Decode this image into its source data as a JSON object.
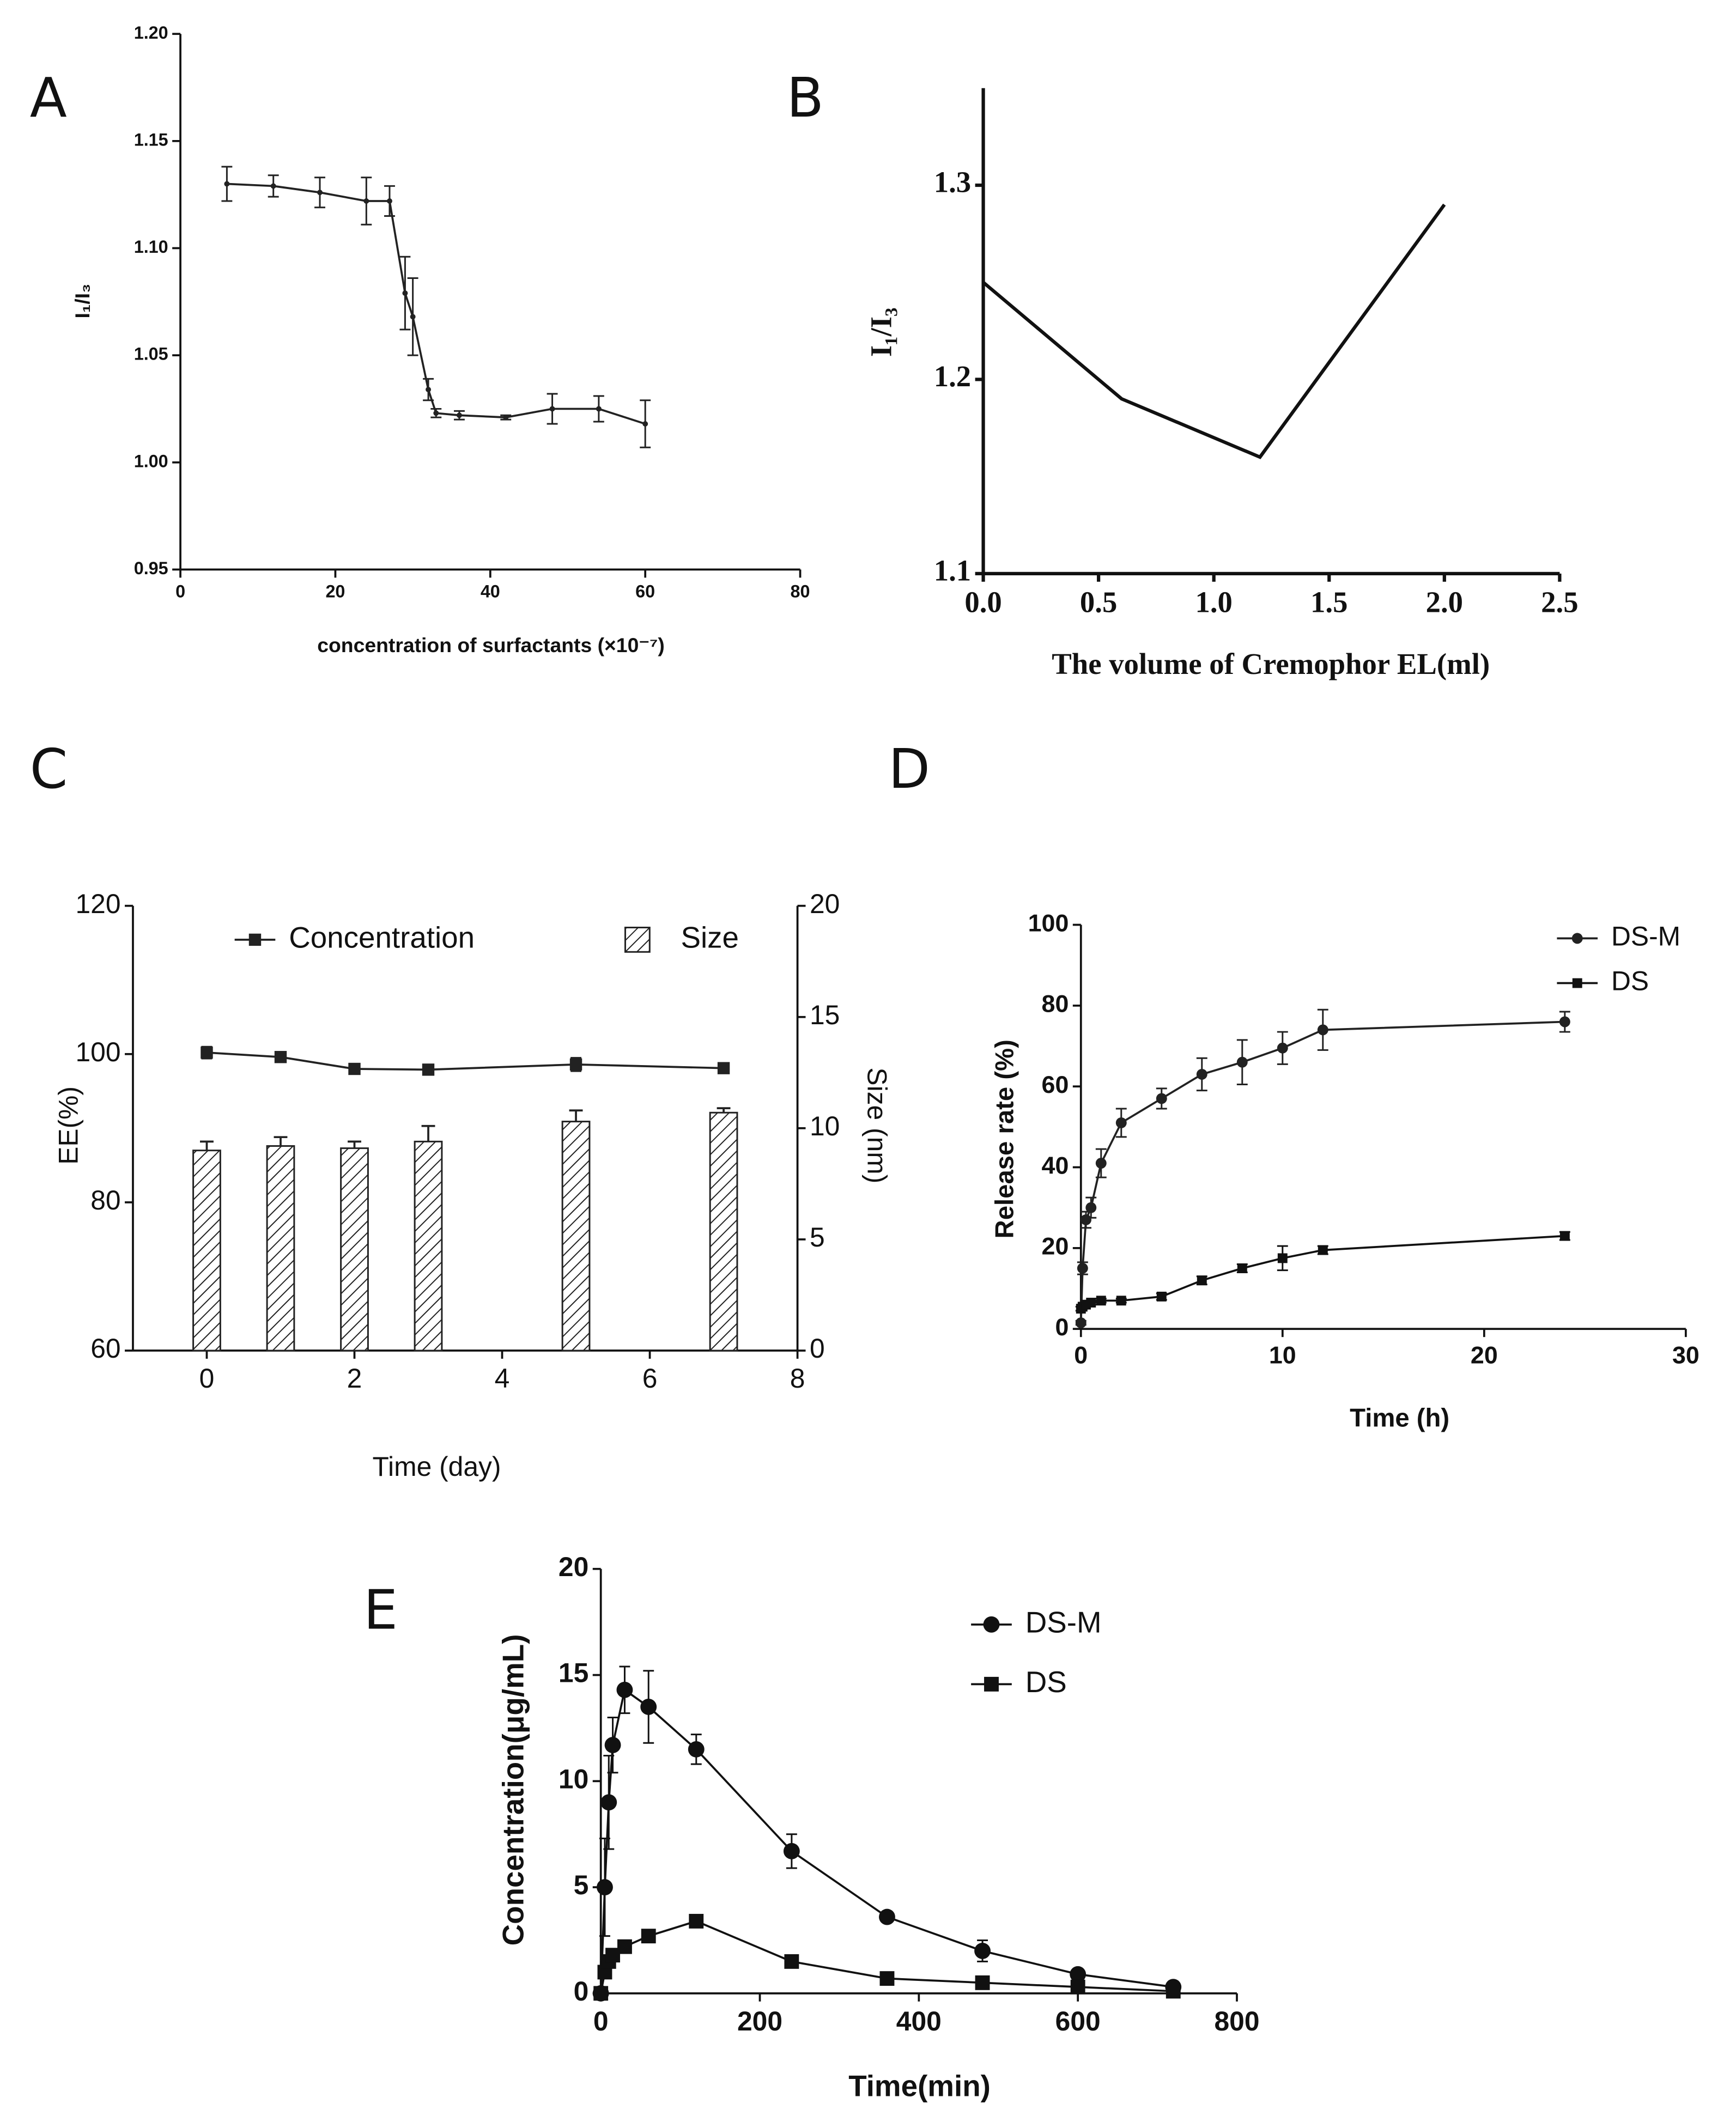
{
  "chart_data": [
    {
      "type": "line",
      "label": "A",
      "xlabel": "concentration of surfactants (×10⁻⁷)",
      "ylabel": "I₁/I₃",
      "x": [
        6,
        12,
        18,
        24,
        27,
        29,
        30,
        32,
        33,
        36,
        42,
        48,
        54,
        60
      ],
      "series": [
        {
          "color": "#222222",
          "marker": "dot",
          "values": [
            1.13,
            1.129,
            1.126,
            1.122,
            1.122,
            1.079,
            1.068,
            1.034,
            1.023,
            1.022,
            1.021,
            1.025,
            1.025,
            1.018
          ],
          "errors": [
            0.008,
            0.005,
            0.007,
            0.011,
            0.007,
            0.017,
            0.018,
            0.005,
            0.002,
            0.002,
            0.001,
            0.007,
            0.006,
            0.011
          ]
        }
      ],
      "xlim": [
        0,
        80
      ],
      "xticks": [
        0,
        20,
        40,
        60,
        80
      ],
      "ylim": [
        0.95,
        1.2
      ],
      "yticks": [
        0.95,
        {
          "value": 1.0,
          "label": "1.00"
        },
        1.05,
        {
          "value": 1.1,
          "label": "1.10"
        },
        1.15,
        {
          "value": 1.2,
          "label": "1.20"
        }
      ]
    },
    {
      "type": "line",
      "label": "B",
      "xlabel": "The volume of Cremophor EL(ml)",
      "ylabel": "I₁/I₃",
      "x": [
        0,
        0.6,
        1.2,
        2.0
      ],
      "series": [
        {
          "color": "#111111",
          "values": [
            1.25,
            1.19,
            1.16,
            1.29
          ]
        }
      ],
      "xlim": [
        0,
        2.5
      ],
      "xticks": [
        {
          "value": 0,
          "label": "0.0"
        },
        0.5,
        {
          "value": 1,
          "label": "1.0"
        },
        1.5,
        {
          "value": 2,
          "label": "2.0"
        },
        2.5
      ],
      "ylim": [
        1.1,
        1.35
      ],
      "yticks": [
        1.1,
        1.2,
        1.3
      ]
    },
    {
      "type": "combo",
      "label": "C",
      "xlabel": "Time (day)",
      "ylabel": "EE(%)",
      "y2label": "Size (nm)",
      "x": [
        0,
        1,
        2,
        3,
        5,
        7
      ],
      "series": [
        {
          "name": "Concentration",
          "color": "#222222",
          "marker": "square",
          "values": [
            100.2,
            99.6,
            98.0,
            97.9,
            98.6,
            98.1
          ],
          "errors": [
            0.8,
            0.4,
            0.2,
            0.2,
            0.9,
            0.3
          ]
        },
        {
          "name": "Size",
          "kind": "bar",
          "axis": "y2",
          "color": "#222222",
          "values": [
            9.0,
            9.2,
            9.1,
            9.4,
            10.3,
            10.7
          ],
          "errors": [
            0.4,
            0.4,
            0.3,
            0.7,
            0.5,
            0.2
          ]
        }
      ],
      "xlim": [
        -1,
        8
      ],
      "xticks": [
        0,
        2,
        4,
        6,
        8
      ],
      "ylim": [
        60,
        120
      ],
      "yticks": [
        60,
        80,
        100,
        120
      ],
      "y2lim": [
        0,
        20
      ],
      "y2ticks": [
        0,
        5,
        10,
        15,
        20
      ]
    },
    {
      "type": "line",
      "label": "D",
      "xlabel": "Time (h)",
      "ylabel": "Release rate (%)",
      "x": [
        0,
        0.083,
        0.25,
        0.5,
        1,
        2,
        4,
        6,
        8,
        10,
        12,
        24
      ],
      "series": [
        {
          "name": "DS-M",
          "color": "#222222",
          "marker": "circle",
          "values": [
            1.5,
            15,
            27,
            30,
            41,
            51,
            57,
            63,
            66,
            69.5,
            74,
            76
          ],
          "errors": [
            0.5,
            1.5,
            2,
            2.5,
            3.5,
            3.5,
            2.5,
            4,
            5.5,
            4,
            5,
            2.5
          ]
        },
        {
          "name": "DS",
          "color": "#111111",
          "marker": "square",
          "values": [
            5,
            5.5,
            6,
            6.5,
            7,
            7,
            8,
            12,
            15,
            17.5,
            19.5,
            23
          ],
          "errors": [
            0.5,
            0.5,
            0.5,
            0.5,
            0.5,
            0.5,
            0.8,
            1,
            1,
            3,
            1,
            1
          ]
        }
      ],
      "xlim": [
        0,
        30
      ],
      "xticks": [
        0,
        10,
        20,
        30
      ],
      "ylim": [
        0,
        100
      ],
      "yticks": [
        0,
        20,
        40,
        60,
        80,
        100
      ]
    },
    {
      "type": "line",
      "label": "E",
      "xlabel": "Time(min)",
      "ylabel": "Concentration(μg/mL)",
      "x": [
        0,
        5,
        10,
        15,
        30,
        60,
        120,
        240,
        360,
        480,
        600,
        720
      ],
      "series": [
        {
          "name": "DS-M",
          "color": "#111111",
          "marker": "circle",
          "values": [
            0,
            5,
            9,
            11.7,
            14.3,
            13.5,
            11.5,
            6.7,
            3.6,
            2,
            0.9,
            0.3
          ],
          "errors": [
            0,
            2.3,
            2.2,
            1.3,
            1.1,
            1.7,
            0.7,
            0.8,
            0.15,
            0.5,
            0.15,
            0.1
          ]
        },
        {
          "name": "DS",
          "color": "#111111",
          "marker": "square",
          "values": [
            0,
            1,
            1.5,
            1.8,
            2.2,
            2.7,
            3.4,
            1.5,
            0.7,
            0.5,
            0.3,
            0.1
          ],
          "errors": [
            0,
            0.2,
            0.2,
            0.2,
            0.2,
            0.2,
            0.2,
            0.15,
            0.1,
            0.1,
            0.1,
            0.05
          ]
        }
      ],
      "xlim": [
        0,
        800
      ],
      "xticks": [
        0,
        200,
        400,
        600,
        800
      ],
      "ylim": [
        0,
        20
      ],
      "yticks": [
        0,
        5,
        10,
        15,
        20
      ]
    }
  ]
}
